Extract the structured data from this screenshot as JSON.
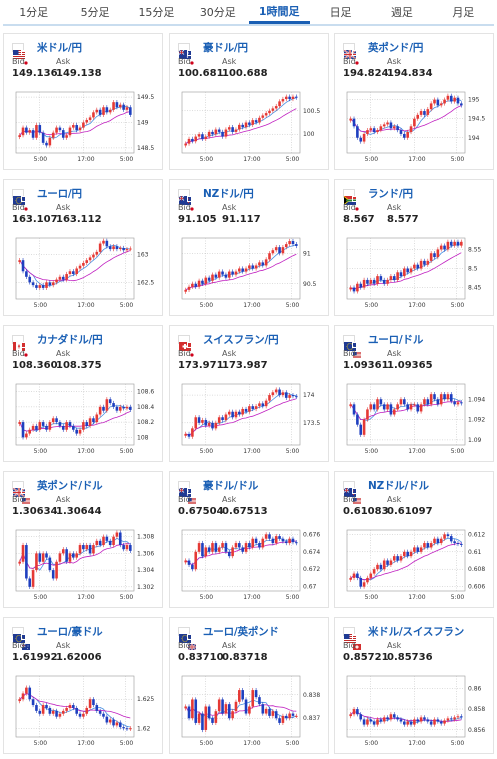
{
  "tabs": [
    {
      "label": "1分足",
      "active": false
    },
    {
      "label": "5分足",
      "active": false
    },
    {
      "label": "15分足",
      "active": false
    },
    {
      "label": "30分足",
      "active": false
    },
    {
      "label": "1時間足",
      "active": true
    },
    {
      "label": "日足",
      "active": false
    },
    {
      "label": "週足",
      "active": false
    },
    {
      "label": "月足",
      "active": false
    }
  ],
  "labels": {
    "bid": "Bid",
    "ask": "Ask"
  },
  "colors": {
    "up": "#e53935",
    "down": "#1e3fbf",
    "ma_fast": "#4a90e2",
    "ma_slow": "#c020c0",
    "link": "#1a5fb4"
  },
  "cards": [
    {
      "pair": "米ドル/円",
      "bid": "149.136",
      "ask": "149.138",
      "flags": [
        "us",
        "jp"
      ],
      "chart_data": {
        "type": "candlestick",
        "x_ticks": [
          "5:00",
          "17:00",
          "5:00"
        ],
        "y_ticks": [
          "149.5",
          "149",
          "148.5"
        ],
        "ylim": [
          148.4,
          149.6
        ],
        "values": [
          148.75,
          148.9,
          148.8,
          148.85,
          148.7,
          148.95,
          148.8,
          148.6,
          148.55,
          148.7,
          148.8,
          148.9,
          148.85,
          148.7,
          148.75,
          148.9,
          148.95,
          148.85,
          148.9,
          149.0,
          149.05,
          149.1,
          149.2,
          149.25,
          149.15,
          149.3,
          149.2,
          149.25,
          149.4,
          149.3,
          149.35,
          149.25,
          149.3,
          149.15
        ]
      }
    },
    {
      "pair": "豪ドル/円",
      "bid": "100.681",
      "ask": "100.688",
      "flags": [
        "au",
        "jp"
      ],
      "chart_data": {
        "type": "candlestick",
        "x_ticks": [
          "5:00",
          "17:00",
          "5:00"
        ],
        "y_ticks": [
          "100.5",
          "100"
        ],
        "ylim": [
          99.6,
          100.9
        ],
        "values": [
          99.8,
          99.9,
          99.85,
          99.95,
          100.0,
          99.9,
          99.95,
          100.05,
          100.0,
          100.1,
          100.05,
          99.95,
          100.1,
          100.15,
          100.05,
          100.1,
          100.2,
          100.15,
          100.25,
          100.2,
          100.3,
          100.25,
          100.35,
          100.4,
          100.45,
          100.5,
          100.55,
          100.6,
          100.7,
          100.75,
          100.8,
          100.75,
          100.8,
          100.78
        ]
      }
    },
    {
      "pair": "英ポンド/円",
      "bid": "194.824",
      "ask": "194.834",
      "flags": [
        "gb",
        "jp"
      ],
      "chart_data": {
        "type": "candlestick",
        "x_ticks": [
          "5:00",
          "17:00",
          "5:00"
        ],
        "y_ticks": [
          "195",
          "194.5",
          "194"
        ],
        "ylim": [
          193.6,
          195.2
        ],
        "values": [
          194.5,
          194.3,
          194.0,
          193.9,
          194.1,
          194.2,
          194.25,
          194.15,
          194.2,
          194.3,
          194.35,
          194.4,
          194.25,
          194.3,
          194.2,
          194.1,
          194.0,
          194.15,
          194.3,
          194.5,
          194.6,
          194.7,
          194.6,
          194.75,
          194.9,
          195.0,
          194.85,
          194.9,
          195.0,
          195.1,
          194.95,
          195.05,
          194.9,
          194.85
        ]
      }
    },
    {
      "pair": "ユーロ/円",
      "bid": "163.107",
      "ask": "163.112",
      "flags": [
        "eu",
        "jp"
      ],
      "chart_data": {
        "type": "candlestick",
        "x_ticks": [
          "5:00",
          "17:00",
          "5:00"
        ],
        "y_ticks": [
          "163",
          "162.5"
        ],
        "ylim": [
          162.2,
          163.3
        ],
        "values": [
          162.9,
          162.7,
          162.6,
          162.5,
          162.45,
          162.4,
          162.45,
          162.4,
          162.5,
          162.45,
          162.5,
          162.55,
          162.6,
          162.55,
          162.65,
          162.7,
          162.65,
          162.75,
          162.8,
          162.85,
          162.9,
          162.95,
          163.0,
          163.05,
          163.2,
          163.25,
          163.15,
          163.1,
          163.15,
          163.1,
          163.12,
          163.08,
          163.1,
          163.11
        ]
      }
    },
    {
      "pair": "NZドル/円",
      "bid": "91.105",
      "ask": "91.117",
      "flags": [
        "nz",
        "jp"
      ],
      "chart_data": {
        "type": "candlestick",
        "x_ticks": [
          "5:00",
          "17:00",
          "5:00"
        ],
        "y_ticks": [
          "91",
          "90.5"
        ],
        "ylim": [
          90.25,
          91.25
        ],
        "values": [
          90.4,
          90.45,
          90.5,
          90.45,
          90.55,
          90.5,
          90.6,
          90.55,
          90.65,
          90.6,
          90.7,
          90.65,
          90.6,
          90.7,
          90.65,
          90.7,
          90.75,
          90.7,
          90.75,
          90.8,
          90.75,
          90.8,
          90.85,
          90.8,
          90.9,
          91.0,
          91.05,
          91.1,
          91.0,
          91.1,
          91.15,
          91.2,
          91.15,
          91.12
        ]
      }
    },
    {
      "pair": "ランド/円",
      "bid": "8.567",
      "ask": "8.577",
      "flags": [
        "za",
        "jp"
      ],
      "chart_data": {
        "type": "candlestick",
        "x_ticks": [
          "5:00",
          "17:00",
          "5:00"
        ],
        "y_ticks": [
          "8.55",
          "8.5",
          "8.45"
        ],
        "ylim": [
          8.42,
          8.58
        ],
        "values": [
          8.45,
          8.44,
          8.46,
          8.45,
          8.47,
          8.46,
          8.47,
          8.46,
          8.48,
          8.47,
          8.46,
          8.47,
          8.48,
          8.47,
          8.49,
          8.48,
          8.5,
          8.49,
          8.5,
          8.51,
          8.5,
          8.52,
          8.51,
          8.52,
          8.54,
          8.53,
          8.55,
          8.56,
          8.55,
          8.57,
          8.56,
          8.57,
          8.56,
          8.57
        ]
      }
    },
    {
      "pair": "カナダドル/円",
      "bid": "108.360",
      "ask": "108.375",
      "flags": [
        "ca",
        "jp"
      ],
      "chart_data": {
        "type": "candlestick",
        "x_ticks": [
          "5:00",
          "17:00",
          "5:00"
        ],
        "y_ticks": [
          "108.6",
          "108.4",
          "108.2",
          "108"
        ],
        "ylim": [
          107.9,
          108.7
        ],
        "values": [
          108.2,
          108.0,
          108.05,
          108.1,
          108.15,
          108.1,
          108.2,
          108.15,
          108.1,
          108.2,
          108.25,
          108.2,
          108.15,
          108.1,
          108.2,
          108.15,
          108.1,
          108.05,
          108.1,
          108.2,
          108.15,
          108.25,
          108.2,
          108.3,
          108.4,
          108.35,
          108.5,
          108.45,
          108.4,
          108.35,
          108.4,
          108.38,
          108.4,
          108.36
        ]
      }
    },
    {
      "pair": "スイスフラン/円",
      "bid": "173.971",
      "ask": "173.987",
      "flags": [
        "ch",
        "jp"
      ],
      "chart_data": {
        "type": "candlestick",
        "x_ticks": [
          "5:00",
          "17:00",
          "5:00"
        ],
        "y_ticks": [
          "174",
          "173.5"
        ],
        "ylim": [
          173.1,
          174.2
        ],
        "values": [
          173.3,
          173.25,
          173.4,
          173.6,
          173.5,
          173.55,
          173.45,
          173.5,
          173.4,
          173.5,
          173.6,
          173.55,
          173.65,
          173.7,
          173.6,
          173.7,
          173.65,
          173.75,
          173.7,
          173.8,
          173.75,
          173.8,
          173.85,
          173.8,
          173.9,
          174.0,
          174.05,
          174.1,
          174.0,
          174.05,
          173.95,
          174.0,
          173.98,
          173.97
        ]
      }
    },
    {
      "pair": "ユーロ/ドル",
      "bid": "1.09361",
      "ask": "1.09365",
      "flags": [
        "eu",
        "us"
      ],
      "chart_data": {
        "type": "candlestick",
        "x_ticks": [
          "5:00",
          "17:00",
          "5:00"
        ],
        "y_ticks": [
          "1.094",
          "1.092",
          "1.09"
        ],
        "ylim": [
          1.0895,
          1.0955
        ],
        "values": [
          1.0935,
          1.0925,
          1.0915,
          1.0905,
          1.092,
          1.093,
          1.0935,
          1.093,
          1.094,
          1.0935,
          1.093,
          1.0935,
          1.0925,
          1.093,
          1.0935,
          1.094,
          1.0935,
          1.093,
          1.0935,
          1.0935,
          1.0928,
          1.0935,
          1.094,
          1.0935,
          1.0945,
          1.094,
          1.0935,
          1.0945,
          1.094,
          1.0945,
          1.0938,
          1.0935,
          1.0937,
          1.0936
        ]
      }
    },
    {
      "pair": "英ポンド/ドル",
      "bid": "1.30634",
      "ask": "1.30644",
      "flags": [
        "gb",
        "us"
      ],
      "chart_data": {
        "type": "candlestick",
        "x_ticks": [
          "5:00",
          "17:00",
          "5:00"
        ],
        "y_ticks": [
          "1.308",
          "1.306",
          "1.304",
          "1.302"
        ],
        "ylim": [
          1.3015,
          1.3088
        ],
        "values": [
          1.305,
          1.307,
          1.303,
          1.302,
          1.304,
          1.306,
          1.305,
          1.306,
          1.3055,
          1.304,
          1.303,
          1.305,
          1.306,
          1.3065,
          1.305,
          1.306,
          1.3055,
          1.306,
          1.307,
          1.3065,
          1.307,
          1.306,
          1.307,
          1.3075,
          1.307,
          1.308,
          1.3075,
          1.307,
          1.308,
          1.3085,
          1.307,
          1.3065,
          1.307,
          1.3063
        ]
      }
    },
    {
      "pair": "豪ドル/ドル",
      "bid": "0.67504",
      "ask": "0.67513",
      "flags": [
        "au",
        "us"
      ],
      "chart_data": {
        "type": "candlestick",
        "x_ticks": [
          "5:00",
          "17:00",
          "5:00"
        ],
        "y_ticks": [
          "0.676",
          "0.674",
          "0.672",
          "0.67"
        ],
        "ylim": [
          0.6695,
          0.6765
        ],
        "values": [
          0.673,
          0.6725,
          0.672,
          0.674,
          0.675,
          0.6735,
          0.6745,
          0.674,
          0.675,
          0.674,
          0.6745,
          0.675,
          0.674,
          0.6735,
          0.6745,
          0.675,
          0.6745,
          0.674,
          0.675,
          0.6745,
          0.6755,
          0.675,
          0.6745,
          0.6755,
          0.676,
          0.6755,
          0.675,
          0.6758,
          0.6755,
          0.6752,
          0.675,
          0.6755,
          0.6751,
          0.675
        ]
      }
    },
    {
      "pair": "NZドル/ドル",
      "bid": "0.61083",
      "ask": "0.61097",
      "flags": [
        "nz",
        "us"
      ],
      "chart_data": {
        "type": "candlestick",
        "x_ticks": [
          "5:00",
          "17:00",
          "5:00"
        ],
        "y_ticks": [
          "0.612",
          "0.61",
          "0.608",
          "0.606"
        ],
        "ylim": [
          0.6055,
          0.6125
        ],
        "values": [
          0.607,
          0.6075,
          0.607,
          0.606,
          0.6065,
          0.607,
          0.6075,
          0.608,
          0.6085,
          0.608,
          0.609,
          0.6085,
          0.609,
          0.6095,
          0.609,
          0.6095,
          0.61,
          0.6095,
          0.61,
          0.6105,
          0.61,
          0.6105,
          0.611,
          0.6105,
          0.611,
          0.6115,
          0.611,
          0.6115,
          0.612,
          0.6118,
          0.6112,
          0.611,
          0.6109,
          0.6108
        ]
      }
    },
    {
      "pair": "ユーロ/豪ドル",
      "bid": "1.61992",
      "ask": "1.62006",
      "flags": [
        "eu",
        "au"
      ],
      "chart_data": {
        "type": "candlestick",
        "x_ticks": [
          "5:00",
          "17:00",
          "5:00"
        ],
        "y_ticks": [
          "1.625",
          "1.62"
        ],
        "ylim": [
          1.6185,
          1.629
        ],
        "values": [
          1.625,
          1.626,
          1.627,
          1.625,
          1.624,
          1.623,
          1.6225,
          1.624,
          1.6235,
          1.6225,
          1.623,
          1.622,
          1.6225,
          1.623,
          1.6235,
          1.624,
          1.6235,
          1.6225,
          1.622,
          1.6225,
          1.6235,
          1.625,
          1.624,
          1.623,
          1.6225,
          1.622,
          1.621,
          1.6215,
          1.6205,
          1.621,
          1.6202,
          1.62,
          1.6199,
          1.62
        ]
      }
    },
    {
      "pair": "ユーロ/英ポンド",
      "bid": "0.83710",
      "ask": "0.83718",
      "flags": [
        "eu",
        "gb"
      ],
      "chart_data": {
        "type": "candlestick",
        "x_ticks": [
          "5:00",
          "17:00",
          "5:00"
        ],
        "y_ticks": [
          "0.838",
          "0.837"
        ],
        "ylim": [
          0.8362,
          0.8388
        ],
        "values": [
          0.8375,
          0.837,
          0.8378,
          0.8368,
          0.8372,
          0.8365,
          0.8375,
          0.837,
          0.8368,
          0.8373,
          0.8378,
          0.8372,
          0.8376,
          0.837,
          0.8373,
          0.8377,
          0.8382,
          0.8378,
          0.8372,
          0.8375,
          0.8382,
          0.8379,
          0.8376,
          0.8372,
          0.8374,
          0.8371,
          0.8373,
          0.837,
          0.8368,
          0.8371,
          0.837,
          0.8372,
          0.8371,
          0.8371
        ]
      }
    },
    {
      "pair": "米ドル/スイスフラン",
      "bid": "0.85721",
      "ask": "0.85736",
      "flags": [
        "us",
        "ch"
      ],
      "chart_data": {
        "type": "candlestick",
        "x_ticks": [
          "5:00",
          "17:00",
          "5:00"
        ],
        "y_ticks": [
          "0.86",
          "0.858",
          "0.856"
        ],
        "ylim": [
          0.8553,
          0.8612
        ],
        "values": [
          0.8575,
          0.858,
          0.8575,
          0.857,
          0.8565,
          0.857,
          0.8568,
          0.8565,
          0.857,
          0.8568,
          0.8572,
          0.857,
          0.8575,
          0.8572,
          0.857,
          0.8568,
          0.8565,
          0.8568,
          0.8565,
          0.857,
          0.8568,
          0.8572,
          0.857,
          0.8568,
          0.8565,
          0.857,
          0.8568,
          0.8566,
          0.8569,
          0.8571,
          0.857,
          0.8572,
          0.8573,
          0.8572
        ]
      }
    }
  ]
}
